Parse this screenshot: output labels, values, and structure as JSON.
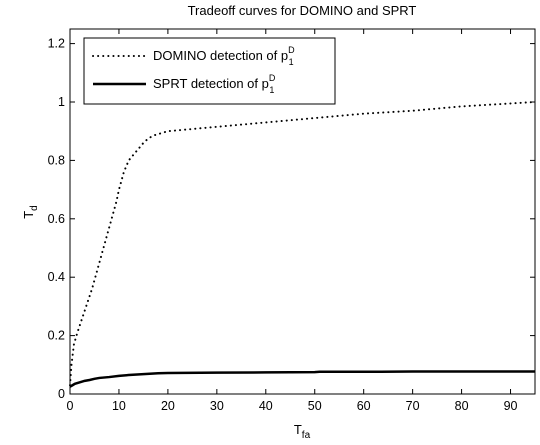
{
  "chart_data": {
    "type": "line",
    "title": "Tradeoff curves for DOMINO and SPRT",
    "xlabel": {
      "main": "T",
      "sub": "fa"
    },
    "ylabel": {
      "main": "T",
      "sub": "d"
    },
    "xlim": [
      0,
      95
    ],
    "ylim": [
      0,
      1.25
    ],
    "xticks": [
      "0",
      "10",
      "20",
      "30",
      "40",
      "50",
      "60",
      "70",
      "80",
      "90"
    ],
    "yticks": [
      "0",
      "0.2",
      "0.4",
      "0.6",
      "0.8",
      "1",
      "1.2"
    ],
    "grid": false,
    "legend_position": "top-left",
    "series": [
      {
        "name": "DOMINO detection of p",
        "name_sup": "D",
        "name_sub": "1",
        "style": "dotted",
        "color": "#000000",
        "x": [
          0,
          0.3,
          0.8,
          1.5,
          2.5,
          3.5,
          4.5,
          5.5,
          6.5,
          7.5,
          8.5,
          9.5,
          10,
          11,
          12,
          13,
          14,
          15,
          16,
          17,
          18,
          19,
          20,
          30,
          40,
          50,
          60,
          70,
          80,
          90,
          95
        ],
        "y": [
          0.03,
          0.1,
          0.17,
          0.21,
          0.26,
          0.31,
          0.36,
          0.42,
          0.48,
          0.54,
          0.6,
          0.66,
          0.7,
          0.76,
          0.8,
          0.82,
          0.84,
          0.86,
          0.875,
          0.885,
          0.89,
          0.895,
          0.9,
          0.915,
          0.93,
          0.945,
          0.96,
          0.97,
          0.985,
          0.995,
          1.0
        ]
      },
      {
        "name": "SPRT detection of p",
        "name_sup": "D",
        "name_sub": "1",
        "style": "solid",
        "color": "#000000",
        "x": [
          0,
          0.5,
          1,
          2,
          3,
          4,
          5,
          6,
          8,
          10,
          12,
          15,
          18,
          20,
          30,
          40,
          50,
          51,
          60,
          70,
          80,
          95
        ],
        "y": [
          0.025,
          0.03,
          0.035,
          0.04,
          0.045,
          0.048,
          0.052,
          0.055,
          0.058,
          0.062,
          0.065,
          0.068,
          0.071,
          0.072,
          0.073,
          0.074,
          0.075,
          0.076,
          0.076,
          0.077,
          0.077,
          0.077
        ]
      }
    ]
  }
}
